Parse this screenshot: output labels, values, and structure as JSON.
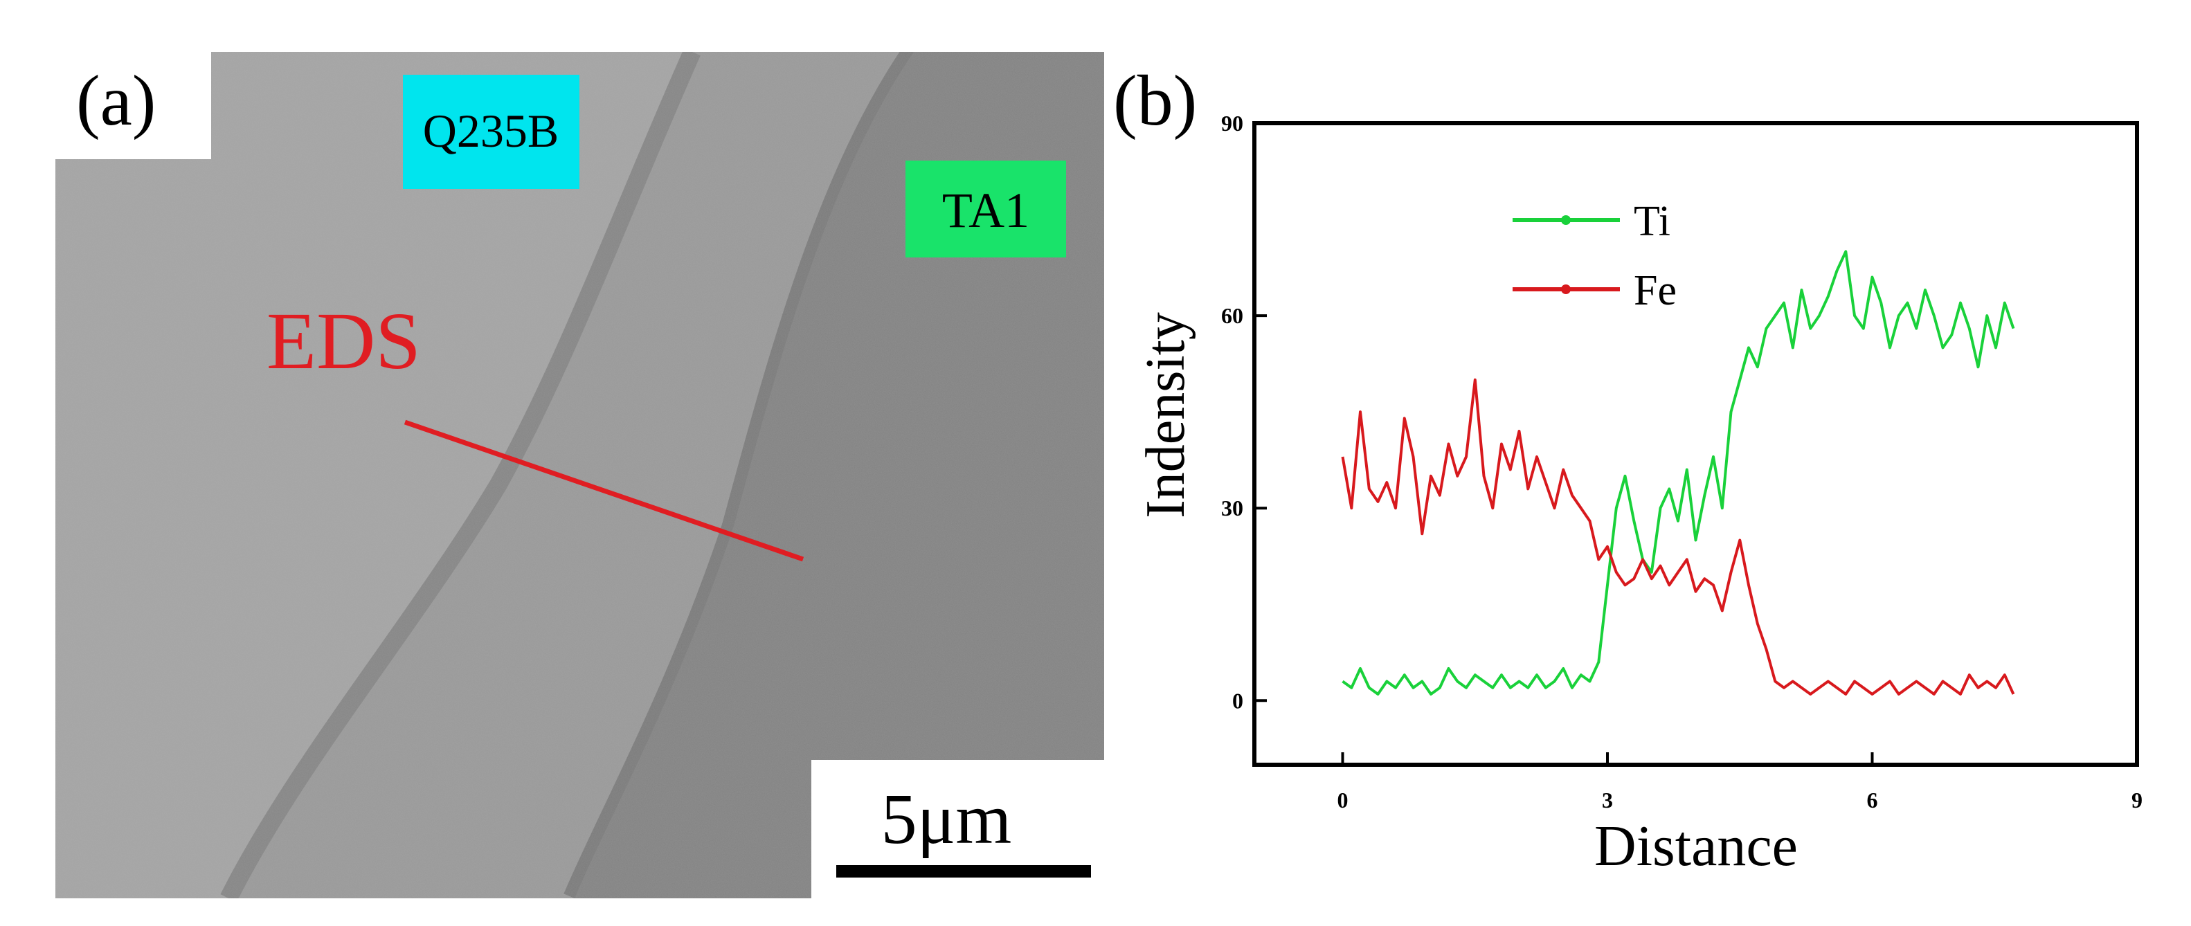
{
  "panel_a": {
    "label": "(a)",
    "region_left_label": "Q235B",
    "region_right_label": "TA1",
    "eds_label": "EDS",
    "scale_bar_label": "5μm",
    "colors": {
      "q235b_tag": "#00e5ee",
      "ta1_tag": "#19e36a",
      "eds_line": "#e01d22",
      "eds_text": "#e01d22"
    }
  },
  "panel_b": {
    "label": "(b)"
  },
  "chart_data": {
    "type": "line",
    "title": "",
    "xlabel": "Distance",
    "ylabel": "Indensity",
    "xlim": [
      -1,
      9
    ],
    "ylim": [
      -10,
      90
    ],
    "xticks": [
      0,
      3,
      6,
      9
    ],
    "yticks": [
      0,
      30,
      60,
      90
    ],
    "xtick_labels": [
      "0",
      "3",
      "6",
      "9"
    ],
    "ytick_labels": [
      "0",
      "30",
      "60",
      "90"
    ],
    "grid": false,
    "legend_position": "top-left",
    "series": [
      {
        "name": "Ti",
        "color": "#19d13a",
        "x": [
          0.0,
          0.1,
          0.2,
          0.3,
          0.4,
          0.5,
          0.6,
          0.7,
          0.8,
          0.9,
          1.0,
          1.1,
          1.2,
          1.3,
          1.4,
          1.5,
          1.6,
          1.7,
          1.8,
          1.9,
          2.0,
          2.1,
          2.2,
          2.3,
          2.4,
          2.5,
          2.6,
          2.7,
          2.8,
          2.9,
          3.0,
          3.1,
          3.2,
          3.3,
          3.4,
          3.5,
          3.6,
          3.7,
          3.8,
          3.9,
          4.0,
          4.1,
          4.2,
          4.3,
          4.4,
          4.5,
          4.6,
          4.7,
          4.8,
          4.9,
          5.0,
          5.1,
          5.2,
          5.3,
          5.4,
          5.5,
          5.6,
          5.7,
          5.8,
          5.9,
          6.0,
          6.1,
          6.2,
          6.3,
          6.4,
          6.5,
          6.6,
          6.7,
          6.8,
          6.9,
          7.0,
          7.1,
          7.2,
          7.3,
          7.4,
          7.5,
          7.6
        ],
        "values": [
          3,
          2,
          5,
          2,
          1,
          3,
          2,
          4,
          2,
          3,
          1,
          2,
          5,
          3,
          2,
          4,
          3,
          2,
          4,
          2,
          3,
          2,
          4,
          2,
          3,
          5,
          2,
          4,
          3,
          6,
          18,
          30,
          35,
          28,
          22,
          20,
          30,
          33,
          28,
          36,
          25,
          32,
          38,
          30,
          45,
          50,
          55,
          52,
          58,
          60,
          62,
          55,
          64,
          58,
          60,
          63,
          67,
          70,
          60,
          58,
          66,
          62,
          55,
          60,
          62,
          58,
          64,
          60,
          55,
          57,
          62,
          58,
          52,
          60,
          55,
          62,
          58
        ]
      },
      {
        "name": "Fe",
        "color": "#d8191d",
        "x": [
          0.0,
          0.1,
          0.2,
          0.3,
          0.4,
          0.5,
          0.6,
          0.7,
          0.8,
          0.9,
          1.0,
          1.1,
          1.2,
          1.3,
          1.4,
          1.5,
          1.6,
          1.7,
          1.8,
          1.9,
          2.0,
          2.1,
          2.2,
          2.3,
          2.4,
          2.5,
          2.6,
          2.7,
          2.8,
          2.9,
          3.0,
          3.1,
          3.2,
          3.3,
          3.4,
          3.5,
          3.6,
          3.7,
          3.8,
          3.9,
          4.0,
          4.1,
          4.2,
          4.3,
          4.4,
          4.5,
          4.6,
          4.7,
          4.8,
          4.9,
          5.0,
          5.1,
          5.2,
          5.3,
          5.4,
          5.5,
          5.6,
          5.7,
          5.8,
          5.9,
          6.0,
          6.1,
          6.2,
          6.3,
          6.4,
          6.5,
          6.6,
          6.7,
          6.8,
          6.9,
          7.0,
          7.1,
          7.2,
          7.3,
          7.4,
          7.5,
          7.6
        ],
        "values": [
          38,
          30,
          45,
          33,
          31,
          34,
          30,
          44,
          38,
          26,
          35,
          32,
          40,
          35,
          38,
          50,
          35,
          30,
          40,
          36,
          42,
          33,
          38,
          34,
          30,
          36,
          32,
          30,
          28,
          22,
          24,
          20,
          18,
          19,
          22,
          19,
          21,
          18,
          20,
          22,
          17,
          19,
          18,
          14,
          20,
          25,
          18,
          12,
          8,
          3,
          2,
          3,
          2,
          1,
          2,
          3,
          2,
          1,
          3,
          2,
          1,
          2,
          3,
          1,
          2,
          3,
          2,
          1,
          3,
          2,
          1,
          4,
          2,
          3,
          2,
          4,
          1
        ]
      }
    ]
  }
}
